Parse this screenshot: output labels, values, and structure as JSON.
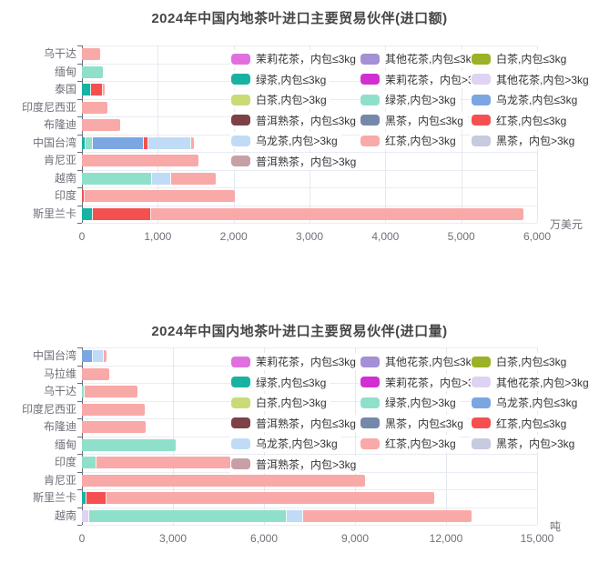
{
  "series_colors": {
    "茉莉花茶，内包≤3kg": "#e070e0",
    "其他花茶,内包≤3kg": "#a58fd5",
    "白茶,内包≤3kg": "#9ab226",
    "绿茶,内包≤3kg": "#18b2a2",
    "茉莉花茶，内包>3kg": "#d22fd2",
    "其他花茶,内包>3kg": "#ded3f2",
    "白茶,内包>3kg": "#c9db76",
    "绿茶,内包>3kg": "#8fe0cb",
    "乌龙茶,内包≤3kg": "#7ba6e2",
    "普洱熟茶，内包≤3kg": "#7d4147",
    "黑茶，内包≤3kg": "#7488ab",
    "红茶,内包≤3kg": "#f4504f",
    "乌龙茶,内包>3kg": "#c0dbf5",
    "红茶,内包>3kg": "#f9a9a7",
    "黑茶，内包>3kg": "#c6cbdf",
    "普洱熟茶，内包>3kg": "#c7a0a5"
  },
  "chart_data": [
    {
      "type": "bar",
      "orientation": "horizontal-stacked",
      "title": "2024年中国内地茶叶进口主要贸易伙伴(进口额)",
      "unit_label": "万美元",
      "xlim": [
        0,
        6000
      ],
      "xtick_values": [
        0,
        1000,
        2000,
        3000,
        4000,
        5000,
        6000
      ],
      "xtick_labels": [
        "0",
        "1,000",
        "2,000",
        "3,000",
        "4,000",
        "5,000",
        "6,000"
      ],
      "grid": true,
      "legend_position": "top-right-overlay",
      "categories": [
        "乌干达",
        "缅甸",
        "泰国",
        "印度尼西亚",
        "布隆迪",
        "中国台湾",
        "肯尼亚",
        "越南",
        "印度",
        "斯里兰卡"
      ],
      "bars": [
        {
          "category": "乌干达",
          "segments": [
            {
              "series": "红茶,内包>3kg",
              "value": 240
            }
          ]
        },
        {
          "category": "缅甸",
          "segments": [
            {
              "series": "绿茶,内包>3kg",
              "value": 270
            }
          ]
        },
        {
          "category": "泰国",
          "segments": [
            {
              "series": "绿茶,内包≤3kg",
              "value": 120
            },
            {
              "series": "红茶,内包≤3kg",
              "value": 150
            },
            {
              "series": "红茶,内包>3kg",
              "value": 30
            }
          ]
        },
        {
          "category": "印度尼西亚",
          "segments": [
            {
              "series": "红茶,内包>3kg",
              "value": 340
            }
          ]
        },
        {
          "category": "布隆迪",
          "segments": [
            {
              "series": "红茶,内包>3kg",
              "value": 500
            }
          ]
        },
        {
          "category": "中国台湾",
          "segments": [
            {
              "series": "绿茶,内包≤3kg",
              "value": 50
            },
            {
              "series": "绿茶,内包>3kg",
              "value": 90
            },
            {
              "series": "乌龙茶,内包≤3kg",
              "value": 680
            },
            {
              "series": "红茶,内包≤3kg",
              "value": 55
            },
            {
              "series": "乌龙茶,内包>3kg",
              "value": 560
            },
            {
              "series": "红茶,内包>3kg",
              "value": 40
            }
          ]
        },
        {
          "category": "肯尼亚",
          "segments": [
            {
              "series": "红茶,内包>3kg",
              "value": 1540
            }
          ]
        },
        {
          "category": "越南",
          "segments": [
            {
              "series": "绿茶,内包>3kg",
              "value": 920
            },
            {
              "series": "乌龙茶,内包>3kg",
              "value": 260
            },
            {
              "series": "红茶,内包>3kg",
              "value": 580
            }
          ]
        },
        {
          "category": "印度",
          "segments": [
            {
              "series": "红茶,内包≤3kg",
              "value": 40
            },
            {
              "series": "红茶,内包>3kg",
              "value": 1980
            }
          ]
        },
        {
          "category": "斯里兰卡",
          "segments": [
            {
              "series": "绿茶,内包≤3kg",
              "value": 140
            },
            {
              "series": "红茶,内包≤3kg",
              "value": 770
            },
            {
              "series": "红茶,内包>3kg",
              "value": 4910
            }
          ]
        }
      ],
      "legend_rows": [
        [
          "茉莉花茶，内包≤3kg",
          "其他花茶,内包≤3kg",
          "白茶,内包≤3kg"
        ],
        [
          "绿茶,内包≤3kg",
          "茉莉花茶，内包>3kg",
          "其他花茶,内包>3kg"
        ],
        [
          "白茶,内包>3kg",
          "绿茶,内包>3kg",
          "乌龙茶,内包≤3kg"
        ],
        [
          "普洱熟茶，内包≤3kg",
          "黑茶，内包≤3kg",
          "红茶,内包≤3kg"
        ],
        [
          "乌龙茶,内包>3kg",
          "红茶,内包>3kg",
          "黑茶，内包>3kg"
        ],
        [
          "普洱熟茶，内包>3kg"
        ]
      ]
    },
    {
      "type": "bar",
      "orientation": "horizontal-stacked",
      "title": "2024年中国内地茶叶进口主要贸易伙伴(进口量)",
      "unit_label": "吨",
      "xlim": [
        0,
        15000
      ],
      "xtick_values": [
        0,
        3000,
        6000,
        9000,
        12000,
        15000
      ],
      "xtick_labels": [
        "0",
        "3,000",
        "6,000",
        "9,000",
        "12,000",
        "15,000"
      ],
      "grid": true,
      "legend_position": "top-right-overlay",
      "categories": [
        "中国台湾",
        "马拉维",
        "乌干达",
        "印度尼西亚",
        "布隆迪",
        "缅甸",
        "印度",
        "肯尼亚",
        "斯里兰卡",
        "越南"
      ],
      "bars": [
        {
          "category": "中国台湾",
          "segments": [
            {
              "series": "乌龙茶,内包≤3kg",
              "value": 350
            },
            {
              "series": "乌龙茶,内包>3kg",
              "value": 380
            },
            {
              "series": "红茶,内包>3kg",
              "value": 80
            }
          ]
        },
        {
          "category": "马拉维",
          "segments": [
            {
              "series": "红茶,内包>3kg",
              "value": 900
            }
          ]
        },
        {
          "category": "乌干达",
          "segments": [
            {
              "series": "绿茶,内包>3kg",
              "value": 100
            },
            {
              "series": "红茶,内包>3kg",
              "value": 1720
            }
          ]
        },
        {
          "category": "印度尼西亚",
          "segments": [
            {
              "series": "红茶,内包>3kg",
              "value": 2080
            }
          ]
        },
        {
          "category": "布隆迪",
          "segments": [
            {
              "series": "红茶,内包>3kg",
              "value": 2100
            }
          ]
        },
        {
          "category": "缅甸",
          "segments": [
            {
              "series": "绿茶,内包>3kg",
              "value": 3100
            }
          ]
        },
        {
          "category": "印度",
          "segments": [
            {
              "series": "绿茶,内包>3kg",
              "value": 470
            },
            {
              "series": "红茶,内包>3kg",
              "value": 4420
            }
          ]
        },
        {
          "category": "肯尼亚",
          "segments": [
            {
              "series": "红茶,内包>3kg",
              "value": 9330
            }
          ]
        },
        {
          "category": "斯里兰卡",
          "segments": [
            {
              "series": "绿茶,内包≤3kg",
              "value": 150
            },
            {
              "series": "红茶,内包≤3kg",
              "value": 650
            },
            {
              "series": "红茶,内包>3kg",
              "value": 10800
            }
          ]
        },
        {
          "category": "越南",
          "segments": [
            {
              "series": "其他花茶,内包>3kg",
              "value": 230
            },
            {
              "series": "绿茶,内包>3kg",
              "value": 6520
            },
            {
              "series": "乌龙茶,内包>3kg",
              "value": 540
            },
            {
              "series": "红茶,内包>3kg",
              "value": 5550
            }
          ]
        }
      ],
      "legend_rows": [
        [
          "茉莉花茶，内包≤3kg",
          "其他花茶,内包≤3kg",
          "白茶,内包≤3kg"
        ],
        [
          "绿茶,内包≤3kg",
          "茉莉花茶，内包>3kg",
          "其他花茶,内包>3kg"
        ],
        [
          "白茶,内包>3kg",
          "绿茶,内包>3kg",
          "乌龙茶,内包≤3kg"
        ],
        [
          "普洱熟茶，内包≤3kg",
          "黑茶，内包≤3kg",
          "红茶,内包≤3kg"
        ],
        [
          "乌龙茶,内包>3kg",
          "红茶,内包>3kg",
          "黑茶，内包>3kg"
        ],
        [
          "普洱熟茶，内包>3kg"
        ]
      ]
    }
  ]
}
